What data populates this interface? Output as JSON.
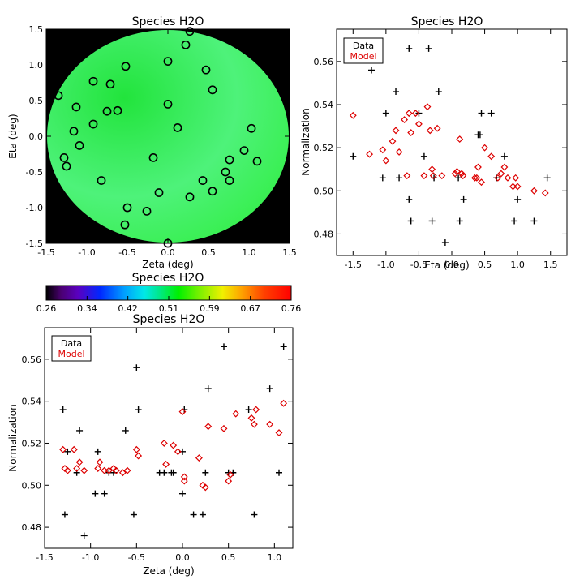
{
  "chart_data": [
    {
      "type": "scatter",
      "title": "Species H2O",
      "xlabel": "Zeta (deg)",
      "ylabel": "Eta (deg)",
      "xlim": [
        -1.5,
        1.5
      ],
      "ylim": [
        -1.5,
        1.5
      ],
      "xticks": [
        -1.5,
        -1.0,
        -0.5,
        0.0,
        0.5,
        1.0,
        1.5
      ],
      "yticks": [
        -1.5,
        -1.0,
        -0.5,
        0.0,
        0.5,
        1.0,
        1.5
      ],
      "background": "#000000",
      "disk_colors": [
        "#22e43c",
        "#4ef27a",
        "#32ee44"
      ],
      "marker": "open circle",
      "points": [
        {
          "x": 0.27,
          "y": 1.47
        },
        {
          "x": 0.22,
          "y": 1.28
        },
        {
          "x": 0.0,
          "y": 1.05
        },
        {
          "x": -0.52,
          "y": 0.98
        },
        {
          "x": 0.47,
          "y": 0.93
        },
        {
          "x": -0.92,
          "y": 0.77
        },
        {
          "x": -0.71,
          "y": 0.73
        },
        {
          "x": 0.55,
          "y": 0.65
        },
        {
          "x": -1.35,
          "y": 0.57
        },
        {
          "x": 0.0,
          "y": 0.45
        },
        {
          "x": -1.13,
          "y": 0.41
        },
        {
          "x": -0.75,
          "y": 0.35
        },
        {
          "x": -0.62,
          "y": 0.36
        },
        {
          "x": -0.92,
          "y": 0.17
        },
        {
          "x": 0.12,
          "y": 0.12
        },
        {
          "x": -1.16,
          "y": 0.07
        },
        {
          "x": 1.03,
          "y": 0.11
        },
        {
          "x": -1.09,
          "y": -0.13
        },
        {
          "x": 0.94,
          "y": -0.2
        },
        {
          "x": -1.28,
          "y": -0.3
        },
        {
          "x": -0.18,
          "y": -0.3
        },
        {
          "x": 0.76,
          "y": -0.33
        },
        {
          "x": 1.1,
          "y": -0.35
        },
        {
          "x": -1.25,
          "y": -0.42
        },
        {
          "x": 0.71,
          "y": -0.5
        },
        {
          "x": -0.82,
          "y": -0.62
        },
        {
          "x": 0.43,
          "y": -0.62
        },
        {
          "x": 0.76,
          "y": -0.62
        },
        {
          "x": 0.55,
          "y": -0.77
        },
        {
          "x": -0.11,
          "y": -0.79
        },
        {
          "x": 0.27,
          "y": -0.85
        },
        {
          "x": -0.5,
          "y": -1.0
        },
        {
          "x": -0.26,
          "y": -1.05
        },
        {
          "x": -0.53,
          "y": -1.24
        },
        {
          "x": 0.0,
          "y": -1.5
        }
      ]
    },
    {
      "type": "scatter",
      "title": "Species H2O",
      "xlabel": "Eta (deg)",
      "ylabel": "Normalization",
      "xlim": [
        -1.75,
        1.75
      ],
      "ylim": [
        0.47,
        0.575
      ],
      "xticks": [
        -1.5,
        -1.0,
        -0.5,
        0.0,
        0.5,
        1.0,
        1.5
      ],
      "yticks": [
        0.48,
        0.5,
        0.52,
        0.54,
        0.56
      ],
      "legend": [
        "Data",
        "Model"
      ],
      "legend_placement": "top-left",
      "series": [
        {
          "name": "Data",
          "color": "#000000",
          "marker": "plus",
          "points": [
            {
              "x": -1.5,
              "y": 0.516
            },
            {
              "x": -1.22,
              "y": 0.556
            },
            {
              "x": -1.05,
              "y": 0.506
            },
            {
              "x": -1.0,
              "y": 0.536
            },
            {
              "x": -0.85,
              "y": 0.546
            },
            {
              "x": -0.8,
              "y": 0.506
            },
            {
              "x": -0.65,
              "y": 0.566
            },
            {
              "x": -0.65,
              "y": 0.496
            },
            {
              "x": -0.62,
              "y": 0.486
            },
            {
              "x": -0.5,
              "y": 0.536
            },
            {
              "x": -0.42,
              "y": 0.516
            },
            {
              "x": -0.35,
              "y": 0.566
            },
            {
              "x": -0.3,
              "y": 0.486
            },
            {
              "x": -0.27,
              "y": 0.506
            },
            {
              "x": -0.2,
              "y": 0.546
            },
            {
              "x": -0.1,
              "y": 0.476
            },
            {
              "x": 0.1,
              "y": 0.506
            },
            {
              "x": 0.12,
              "y": 0.486
            },
            {
              "x": 0.18,
              "y": 0.496
            },
            {
              "x": 0.4,
              "y": 0.526
            },
            {
              "x": 0.43,
              "y": 0.526
            },
            {
              "x": 0.45,
              "y": 0.536
            },
            {
              "x": 0.6,
              "y": 0.536
            },
            {
              "x": 0.68,
              "y": 0.506
            },
            {
              "x": 0.8,
              "y": 0.516
            },
            {
              "x": 0.95,
              "y": 0.486
            },
            {
              "x": 1.0,
              "y": 0.496
            },
            {
              "x": 1.25,
              "y": 0.486
            },
            {
              "x": 1.45,
              "y": 0.506
            }
          ]
        },
        {
          "name": "Model",
          "color": "#dd0000",
          "marker": "diamond",
          "points": [
            {
              "x": -1.5,
              "y": 0.535
            },
            {
              "x": -1.25,
              "y": 0.517
            },
            {
              "x": -1.05,
              "y": 0.519
            },
            {
              "x": -1.0,
              "y": 0.514
            },
            {
              "x": -0.9,
              "y": 0.523
            },
            {
              "x": -0.85,
              "y": 0.528
            },
            {
              "x": -0.8,
              "y": 0.518
            },
            {
              "x": -0.72,
              "y": 0.533
            },
            {
              "x": -0.68,
              "y": 0.507
            },
            {
              "x": -0.65,
              "y": 0.536
            },
            {
              "x": -0.62,
              "y": 0.527
            },
            {
              "x": -0.55,
              "y": 0.536
            },
            {
              "x": -0.5,
              "y": 0.531
            },
            {
              "x": -0.42,
              "y": 0.507
            },
            {
              "x": -0.37,
              "y": 0.539
            },
            {
              "x": -0.33,
              "y": 0.528
            },
            {
              "x": -0.3,
              "y": 0.51
            },
            {
              "x": -0.28,
              "y": 0.507
            },
            {
              "x": -0.22,
              "y": 0.529
            },
            {
              "x": -0.15,
              "y": 0.507
            },
            {
              "x": 0.05,
              "y": 0.508
            },
            {
              "x": 0.08,
              "y": 0.509
            },
            {
              "x": 0.12,
              "y": 0.524
            },
            {
              "x": 0.15,
              "y": 0.508
            },
            {
              "x": 0.17,
              "y": 0.507
            },
            {
              "x": 0.35,
              "y": 0.506
            },
            {
              "x": 0.38,
              "y": 0.506
            },
            {
              "x": 0.4,
              "y": 0.511
            },
            {
              "x": 0.45,
              "y": 0.504
            },
            {
              "x": 0.5,
              "y": 0.52
            },
            {
              "x": 0.6,
              "y": 0.516
            },
            {
              "x": 0.7,
              "y": 0.506
            },
            {
              "x": 0.75,
              "y": 0.508
            },
            {
              "x": 0.8,
              "y": 0.511
            },
            {
              "x": 0.85,
              "y": 0.506
            },
            {
              "x": 0.93,
              "y": 0.502
            },
            {
              "x": 0.97,
              "y": 0.506
            },
            {
              "x": 1.0,
              "y": 0.502
            },
            {
              "x": 1.25,
              "y": 0.5
            },
            {
              "x": 1.42,
              "y": 0.499
            }
          ]
        }
      ]
    },
    {
      "type": "colorbar",
      "title": "Species H2O",
      "ticks": [
        "0.26",
        "0.34",
        "0.42",
        "0.51",
        "0.59",
        "0.67",
        "0.76"
      ],
      "range": [
        0.26,
        0.76
      ]
    },
    {
      "type": "scatter",
      "title": "Species H2O",
      "xlabel": "Zeta (deg)",
      "ylabel": "Normalization",
      "xlim": [
        -1.5,
        1.2
      ],
      "ylim": [
        0.47,
        0.575
      ],
      "xticks": [
        -1.5,
        -1.0,
        -0.5,
        0.0,
        0.5,
        1.0
      ],
      "yticks": [
        0.48,
        0.5,
        0.52,
        0.54,
        0.56
      ],
      "legend": [
        "Data",
        "Model"
      ],
      "legend_placement": "top-left",
      "series": [
        {
          "name": "Data",
          "color": "#000000",
          "marker": "plus",
          "points": [
            {
              "x": -1.3,
              "y": 0.536
            },
            {
              "x": -1.28,
              "y": 0.486
            },
            {
              "x": -1.25,
              "y": 0.516
            },
            {
              "x": -1.15,
              "y": 0.506
            },
            {
              "x": -1.12,
              "y": 0.526
            },
            {
              "x": -1.07,
              "y": 0.476
            },
            {
              "x": -0.95,
              "y": 0.496
            },
            {
              "x": -0.92,
              "y": 0.516
            },
            {
              "x": -0.85,
              "y": 0.496
            },
            {
              "x": -0.8,
              "y": 0.506
            },
            {
              "x": -0.75,
              "y": 0.506
            },
            {
              "x": -0.62,
              "y": 0.526
            },
            {
              "x": -0.53,
              "y": 0.486
            },
            {
              "x": -0.5,
              "y": 0.556
            },
            {
              "x": -0.48,
              "y": 0.536
            },
            {
              "x": -0.25,
              "y": 0.506
            },
            {
              "x": -0.2,
              "y": 0.506
            },
            {
              "x": -0.12,
              "y": 0.506
            },
            {
              "x": -0.1,
              "y": 0.506
            },
            {
              "x": 0.0,
              "y": 0.496
            },
            {
              "x": 0.0,
              "y": 0.516
            },
            {
              "x": 0.02,
              "y": 0.536
            },
            {
              "x": 0.12,
              "y": 0.486
            },
            {
              "x": 0.22,
              "y": 0.486
            },
            {
              "x": 0.25,
              "y": 0.506
            },
            {
              "x": 0.28,
              "y": 0.546
            },
            {
              "x": 0.45,
              "y": 0.566
            },
            {
              "x": 0.5,
              "y": 0.506
            },
            {
              "x": 0.55,
              "y": 0.506
            },
            {
              "x": 0.72,
              "y": 0.536
            },
            {
              "x": 0.78,
              "y": 0.486
            },
            {
              "x": 0.95,
              "y": 0.546
            },
            {
              "x": 1.05,
              "y": 0.506
            },
            {
              "x": 1.1,
              "y": 0.566
            }
          ]
        },
        {
          "name": "Model",
          "color": "#dd0000",
          "marker": "diamond",
          "points": [
            {
              "x": -1.3,
              "y": 0.517
            },
            {
              "x": -1.28,
              "y": 0.508
            },
            {
              "x": -1.25,
              "y": 0.507
            },
            {
              "x": -1.18,
              "y": 0.517
            },
            {
              "x": -1.15,
              "y": 0.508
            },
            {
              "x": -1.12,
              "y": 0.511
            },
            {
              "x": -1.07,
              "y": 0.507
            },
            {
              "x": -0.92,
              "y": 0.508
            },
            {
              "x": -0.9,
              "y": 0.511
            },
            {
              "x": -0.85,
              "y": 0.507
            },
            {
              "x": -0.8,
              "y": 0.507
            },
            {
              "x": -0.75,
              "y": 0.508
            },
            {
              "x": -0.72,
              "y": 0.507
            },
            {
              "x": -0.65,
              "y": 0.506
            },
            {
              "x": -0.6,
              "y": 0.507
            },
            {
              "x": -0.5,
              "y": 0.517
            },
            {
              "x": -0.48,
              "y": 0.514
            },
            {
              "x": -0.2,
              "y": 0.52
            },
            {
              "x": -0.18,
              "y": 0.51
            },
            {
              "x": -0.1,
              "y": 0.519
            },
            {
              "x": -0.05,
              "y": 0.516
            },
            {
              "x": 0.0,
              "y": 0.535
            },
            {
              "x": 0.02,
              "y": 0.504
            },
            {
              "x": 0.02,
              "y": 0.502
            },
            {
              "x": 0.18,
              "y": 0.513
            },
            {
              "x": 0.22,
              "y": 0.5
            },
            {
              "x": 0.25,
              "y": 0.499
            },
            {
              "x": 0.28,
              "y": 0.528
            },
            {
              "x": 0.45,
              "y": 0.527
            },
            {
              "x": 0.5,
              "y": 0.502
            },
            {
              "x": 0.52,
              "y": 0.505
            },
            {
              "x": 0.58,
              "y": 0.534
            },
            {
              "x": 0.75,
              "y": 0.532
            },
            {
              "x": 0.78,
              "y": 0.529
            },
            {
              "x": 0.8,
              "y": 0.536
            },
            {
              "x": 0.95,
              "y": 0.529
            },
            {
              "x": 1.05,
              "y": 0.525
            },
            {
              "x": 1.1,
              "y": 0.539
            }
          ]
        }
      ]
    }
  ]
}
